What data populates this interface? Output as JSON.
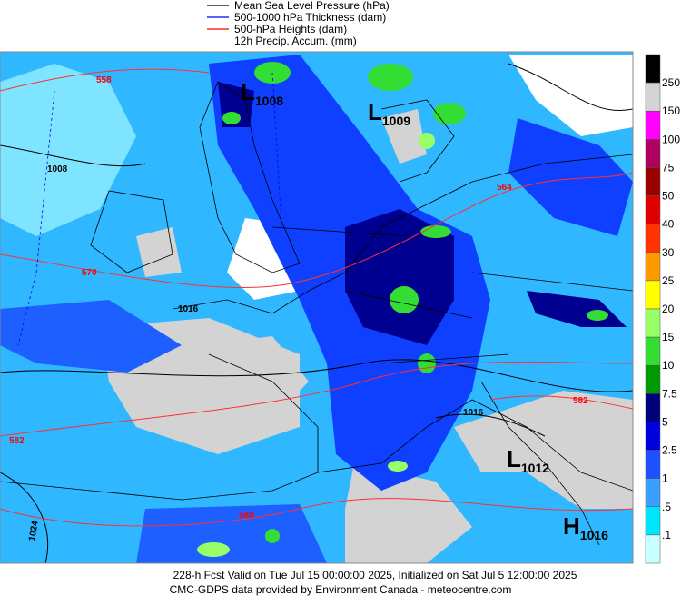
{
  "legend": {
    "items": [
      {
        "label": "Mean Sea Level Pressure (hPa)",
        "color": "#000000"
      },
      {
        "label": "500-1000 hPa Thickness (dam)",
        "color": "#0000ff"
      },
      {
        "label": "500-hPa Heights (dam)",
        "color": "#ff0000"
      },
      {
        "label": "12h Precip. Accum. (mm)"
      }
    ]
  },
  "colorbar": {
    "labels": [
      "250",
      "150",
      "100",
      "75",
      "50",
      "40",
      "30",
      "25",
      "20",
      "15",
      "10",
      "7.5",
      "5",
      "2.5",
      "1",
      ".5",
      ".1"
    ],
    "colors": [
      "#000000",
      "#d4d4d4",
      "#ff00ff",
      "#b00060",
      "#990000",
      "#e00000",
      "#ff3300",
      "#ff9900",
      "#ffff00",
      "#99ff66",
      "#33dd33",
      "#009900",
      "#00007a",
      "#0000dd",
      "#1e50ff",
      "#3aa0ff",
      "#00e5ff",
      "#c8ffff"
    ]
  },
  "pressure_centers": [
    {
      "letter": "L",
      "value": "1008"
    },
    {
      "letter": "L",
      "value": "1009"
    },
    {
      "letter": "L",
      "value": "1012"
    },
    {
      "letter": "H",
      "value": "1016"
    }
  ],
  "contour_labels": [
    {
      "text": "558",
      "color": "#ff0000"
    },
    {
      "text": "1008",
      "color": "#000000"
    },
    {
      "text": "570",
      "color": "#ff0000"
    },
    {
      "text": "1016",
      "color": "#000000"
    },
    {
      "text": "582",
      "color": "#ff0000"
    },
    {
      "text": "564",
      "color": "#ff0000"
    },
    {
      "text": "1016",
      "color": "#000000"
    },
    {
      "text": "582",
      "color": "#ff0000"
    },
    {
      "text": "1024",
      "color": "#000000"
    },
    {
      "text": "588",
      "color": "#ff0000"
    }
  ],
  "footer": {
    "line1": "228-h Fcst Valid on Tue Jul 15 00:00:00 2025, Initialized on Sat Jul  5 12:00:00 2025",
    "line2": "CMC-GDPS data provided by Environment Canada - meteocentre.com"
  }
}
